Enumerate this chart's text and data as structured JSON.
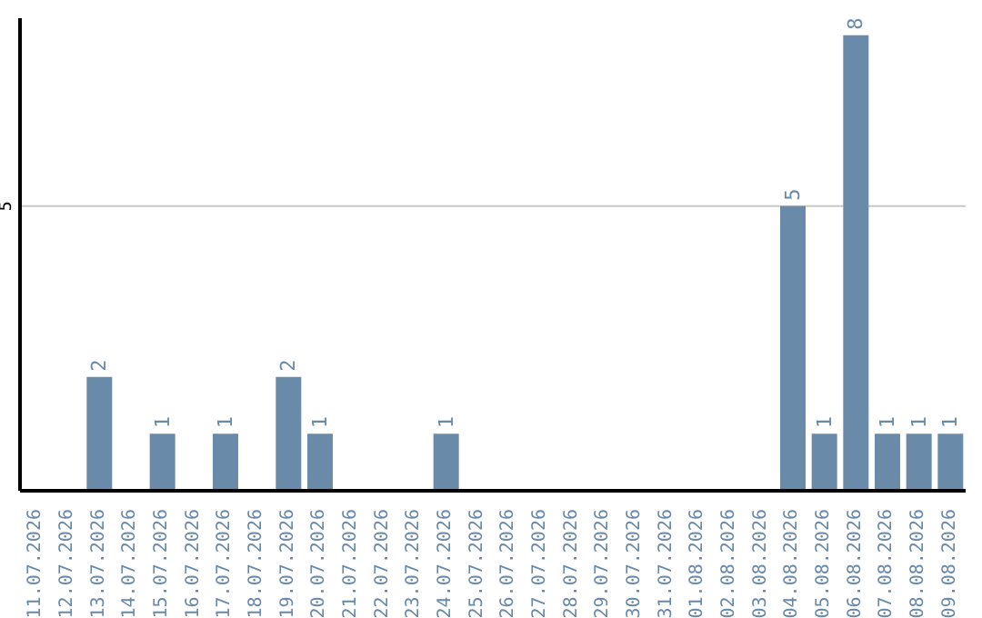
{
  "chart_data": {
    "type": "bar",
    "categories": [
      "11.07.2026",
      "12.07.2026",
      "13.07.2026",
      "14.07.2026",
      "15.07.2026",
      "16.07.2026",
      "17.07.2026",
      "18.07.2026",
      "19.07.2026",
      "20.07.2026",
      "21.07.2026",
      "22.07.2026",
      "23.07.2026",
      "24.07.2026",
      "25.07.2026",
      "26.07.2026",
      "27.07.2026",
      "28.07.2026",
      "29.07.2026",
      "30.07.2026",
      "31.07.2026",
      "01.08.2026",
      "02.08.2026",
      "03.08.2026",
      "04.08.2026",
      "05.08.2026",
      "06.08.2026",
      "07.08.2026",
      "08.08.2026",
      "09.08.2026"
    ],
    "values": [
      0,
      0,
      2,
      0,
      1,
      0,
      1,
      0,
      2,
      1,
      0,
      0,
      0,
      1,
      0,
      0,
      0,
      0,
      0,
      0,
      0,
      0,
      0,
      0,
      5,
      1,
      8,
      1,
      1,
      1
    ],
    "value_labels": [
      null,
      null,
      "2",
      null,
      "1",
      null,
      "1",
      null,
      "2",
      "1",
      null,
      null,
      null,
      "1",
      null,
      null,
      null,
      null,
      null,
      null,
      null,
      null,
      null,
      null,
      "5",
      "1",
      "8",
      "1",
      "1",
      "1"
    ],
    "color": "#6a8aaa",
    "ylim": [
      0,
      8.3
    ],
    "yticks": [
      5
    ],
    "grid": "y"
  }
}
